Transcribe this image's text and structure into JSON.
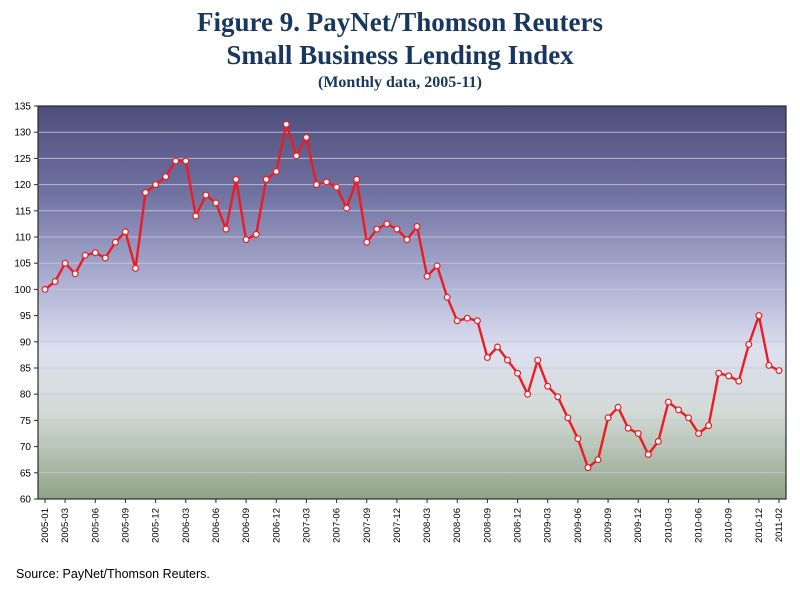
{
  "title": {
    "line1": "Figure 9.  PayNet/Thomson Reuters",
    "line2": "Small Business Lending Index",
    "subtitle": "(Monthly data, 2005-11)"
  },
  "source": "Source:  PayNet/Thomson Reuters.",
  "colors": {
    "title_text": "#17375E",
    "line": "#ED1C24",
    "marker_fill": "#FFFFFF",
    "grid": "#C6C9D8",
    "axis": "#2B2B2B",
    "tick_text": "#000000"
  },
  "chart_data": {
    "type": "line",
    "title": "Figure 9. PayNet/Thomson Reuters Small Business Lending Index",
    "subtitle": "(Monthly data, 2005-11)",
    "xlabel": "",
    "ylabel": "",
    "ylim": [
      60,
      135
    ],
    "y_tick_step": 5,
    "grid": true,
    "legend": "none",
    "x": [
      "2005-01",
      "2005-02",
      "2005-03",
      "2005-04",
      "2005-05",
      "2005-06",
      "2005-07",
      "2005-08",
      "2005-09",
      "2005-10",
      "2005-11",
      "2005-12",
      "2006-01",
      "2006-02",
      "2006-03",
      "2006-04",
      "2006-05",
      "2006-06",
      "2006-07",
      "2006-08",
      "2006-09",
      "2006-10",
      "2006-11",
      "2006-12",
      "2007-01",
      "2007-02",
      "2007-03",
      "2007-04",
      "2007-05",
      "2007-06",
      "2007-07",
      "2007-08",
      "2007-09",
      "2007-10",
      "2007-11",
      "2007-12",
      "2008-01",
      "2008-02",
      "2008-03",
      "2008-04",
      "2008-05",
      "2008-06",
      "2008-07",
      "2008-08",
      "2008-09",
      "2008-10",
      "2008-11",
      "2008-12",
      "2009-01",
      "2009-02",
      "2009-03",
      "2009-04",
      "2009-05",
      "2009-06",
      "2009-07",
      "2009-08",
      "2009-09",
      "2009-10",
      "2009-11",
      "2009-12",
      "2010-01",
      "2010-02",
      "2010-03",
      "2010-04",
      "2010-05",
      "2010-06",
      "2010-07",
      "2010-08",
      "2010-09",
      "2010-10",
      "2010-11",
      "2010-12",
      "2011-01",
      "2011-02"
    ],
    "values": [
      100,
      101.5,
      105,
      103,
      106.5,
      107,
      106,
      109,
      111,
      104,
      118.5,
      120,
      121.5,
      124.5,
      124.5,
      114,
      118,
      116.5,
      111.5,
      121,
      109.5,
      110.5,
      121,
      122.5,
      131.5,
      125.5,
      129,
      120,
      120.5,
      119.5,
      115.5,
      121,
      109,
      111.5,
      112.5,
      111.5,
      109.5,
      112,
      102.5,
      104.5,
      98.5,
      94,
      94.5,
      94,
      87,
      89,
      86.5,
      84,
      80,
      86.5,
      81.5,
      79.5,
      75.5,
      71.5,
      66,
      67.5,
      75.5,
      77.5,
      73.5,
      72.5,
      68.5,
      71,
      78.5,
      77,
      75.5,
      72.5,
      74,
      84,
      83.5,
      82.5,
      89.5,
      95,
      85.5,
      84.5
    ],
    "x_tick_labels": [
      "2005-01",
      "2005-03",
      "2005-06",
      "2005-09",
      "2005-12",
      "2006-03",
      "2006-06",
      "2006-09",
      "2006-12",
      "2007-03",
      "2007-06",
      "2007-09",
      "2007-12",
      "2008-03",
      "2008-06",
      "2008-09",
      "2008-12",
      "2009-03",
      "2009-06",
      "2009-09",
      "2009-12",
      "2010-03",
      "2010-06",
      "2010-09",
      "2010-12",
      "2011-02"
    ],
    "bg_gradient": [
      [
        "0%",
        "#4E4E7C"
      ],
      [
        "22%",
        "#6F71A0"
      ],
      [
        "45%",
        "#AEB1D4"
      ],
      [
        "62%",
        "#DDE0F0"
      ],
      [
        "78%",
        "#D3DAD6"
      ],
      [
        "100%",
        "#8FA487"
      ]
    ]
  }
}
